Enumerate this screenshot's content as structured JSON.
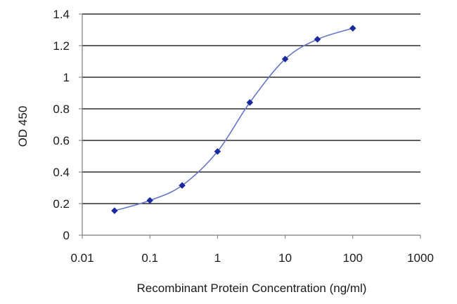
{
  "chart_data": {
    "type": "scatter",
    "title": "",
    "xlabel": "Recombinant Protein Concentration (ng/ml)",
    "ylabel": "OD 450",
    "x_scale": "log",
    "xlim": [
      0.01,
      1000
    ],
    "ylim": [
      0,
      1.4
    ],
    "x_ticks": [
      "0.01",
      "0.1",
      "1",
      "10",
      "100",
      "1000"
    ],
    "y_ticks": [
      "0",
      "0.2",
      "0.4",
      "0.6",
      "0.8",
      "1",
      "1.2",
      "1.4"
    ],
    "grid": "horizontal",
    "legend": "none",
    "colors": {
      "series": "#1a2a9c",
      "curve": "#6677cc",
      "grid": "#000000",
      "axis": "#7a7a7a"
    },
    "series": [
      {
        "x": [
          0.03,
          0.1,
          0.3,
          1,
          3,
          10,
          30,
          100
        ],
        "y": [
          0.155,
          0.22,
          0.315,
          0.53,
          0.84,
          1.115,
          1.24,
          1.31
        ],
        "marker": "diamond",
        "fit": "smooth-curve"
      }
    ]
  }
}
